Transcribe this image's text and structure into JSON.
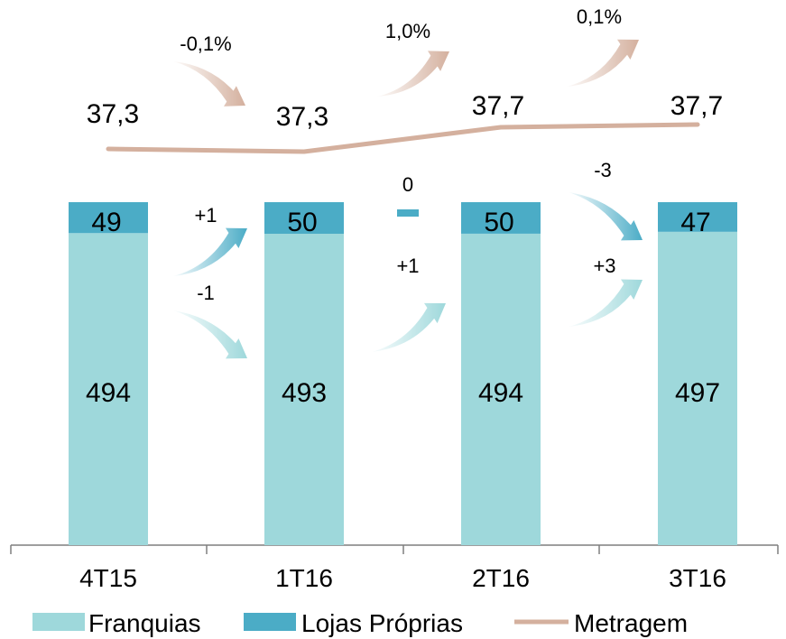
{
  "chart_data": {
    "type": "bar",
    "stacked": true,
    "categories": [
      "4T15",
      "1T16",
      "2T16",
      "3T16"
    ],
    "series": [
      {
        "name": "Franquias",
        "values": [
          494,
          493,
          494,
          497
        ],
        "color": "#9ED8DB"
      },
      {
        "name": "Lojas Próprias",
        "values": [
          49,
          50,
          50,
          47
        ],
        "color": "#4BACC6"
      }
    ],
    "line_series": {
      "name": "Metragem",
      "values": [
        37.3,
        37.3,
        37.7,
        37.7
      ],
      "labels": [
        "37,3",
        "37,3",
        "37,7",
        "37,7"
      ],
      "color": "#D4B09E"
    },
    "line_changes": [
      "-0,1%",
      "1,0%",
      "0,1%"
    ],
    "lojas_changes": [
      "+1",
      "0",
      "-3"
    ],
    "franquias_changes": [
      "-1",
      "+1",
      "+3"
    ],
    "legend": {
      "placement": "bottom",
      "items": [
        "Franquias",
        "Lojas Próprias",
        "Metragem"
      ]
    },
    "grid": false
  }
}
